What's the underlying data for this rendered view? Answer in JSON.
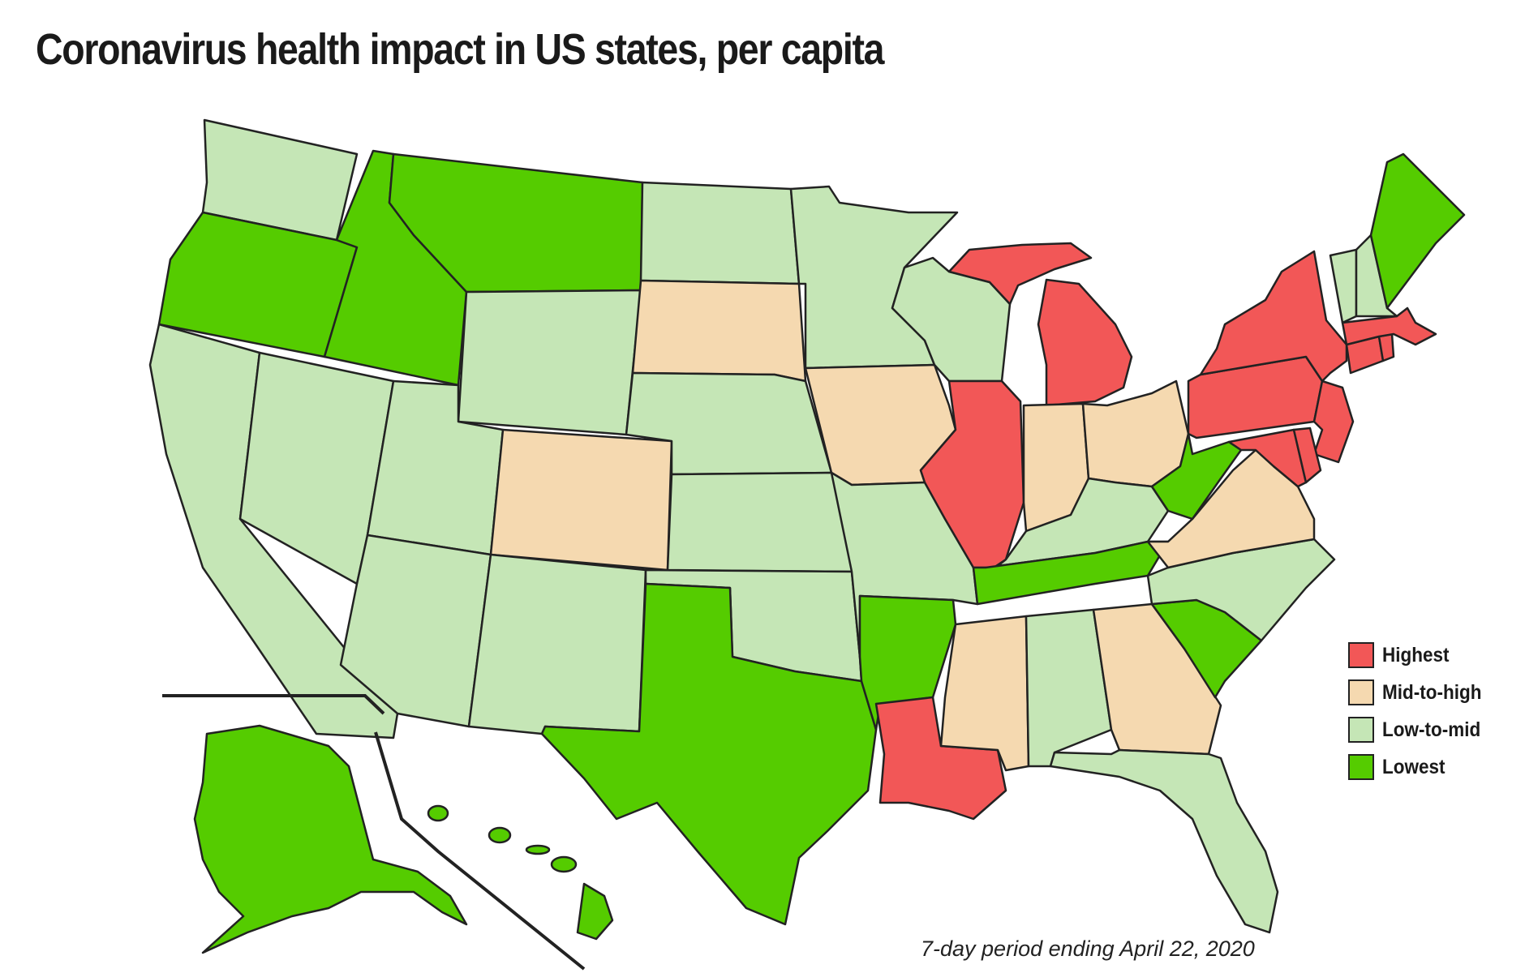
{
  "title": "Coronavirus health impact in US states, per capita",
  "footnote": "7-day period ending April 22, 2020",
  "colors": {
    "highest": "#f25757",
    "mid_to_high": "#f5d9b0",
    "low_to_mid": "#c5e6b6",
    "lowest": "#55cc00",
    "border": "#222222"
  },
  "legend": [
    {
      "label": "Highest",
      "category": "highest"
    },
    {
      "label": "Mid-to-high",
      "category": "mid_to_high"
    },
    {
      "label": "Low-to-mid",
      "category": "low_to_mid"
    },
    {
      "label": "Lowest",
      "category": "lowest"
    }
  ],
  "states": {
    "WA": "low_to_mid",
    "OR": "lowest",
    "CA": "low_to_mid",
    "ID": "lowest",
    "NV": "low_to_mid",
    "MT": "lowest",
    "WY": "low_to_mid",
    "UT": "low_to_mid",
    "AZ": "low_to_mid",
    "CO": "mid_to_high",
    "NM": "low_to_mid",
    "ND": "low_to_mid",
    "SD": "mid_to_high",
    "NE": "low_to_mid",
    "KS": "low_to_mid",
    "OK": "low_to_mid",
    "TX": "lowest",
    "MN": "low_to_mid",
    "IA": "mid_to_high",
    "MO": "low_to_mid",
    "AR": "lowest",
    "LA": "highest",
    "WI": "low_to_mid",
    "IL": "highest",
    "MI": "highest",
    "IN": "mid_to_high",
    "OH": "mid_to_high",
    "KY": "low_to_mid",
    "TN": "lowest",
    "MS": "mid_to_high",
    "AL": "low_to_mid",
    "GA": "mid_to_high",
    "FL": "low_to_mid",
    "SC": "lowest",
    "NC": "low_to_mid",
    "VA": "mid_to_high",
    "WV": "lowest",
    "PA": "highest",
    "NY": "highest",
    "NJ": "highest",
    "DE": "highest",
    "MD": "highest",
    "CT": "highest",
    "RI": "highest",
    "MA": "highest",
    "VT": "low_to_mid",
    "NH": "low_to_mid",
    "ME": "lowest",
    "AK": "lowest",
    "HI": "lowest"
  }
}
